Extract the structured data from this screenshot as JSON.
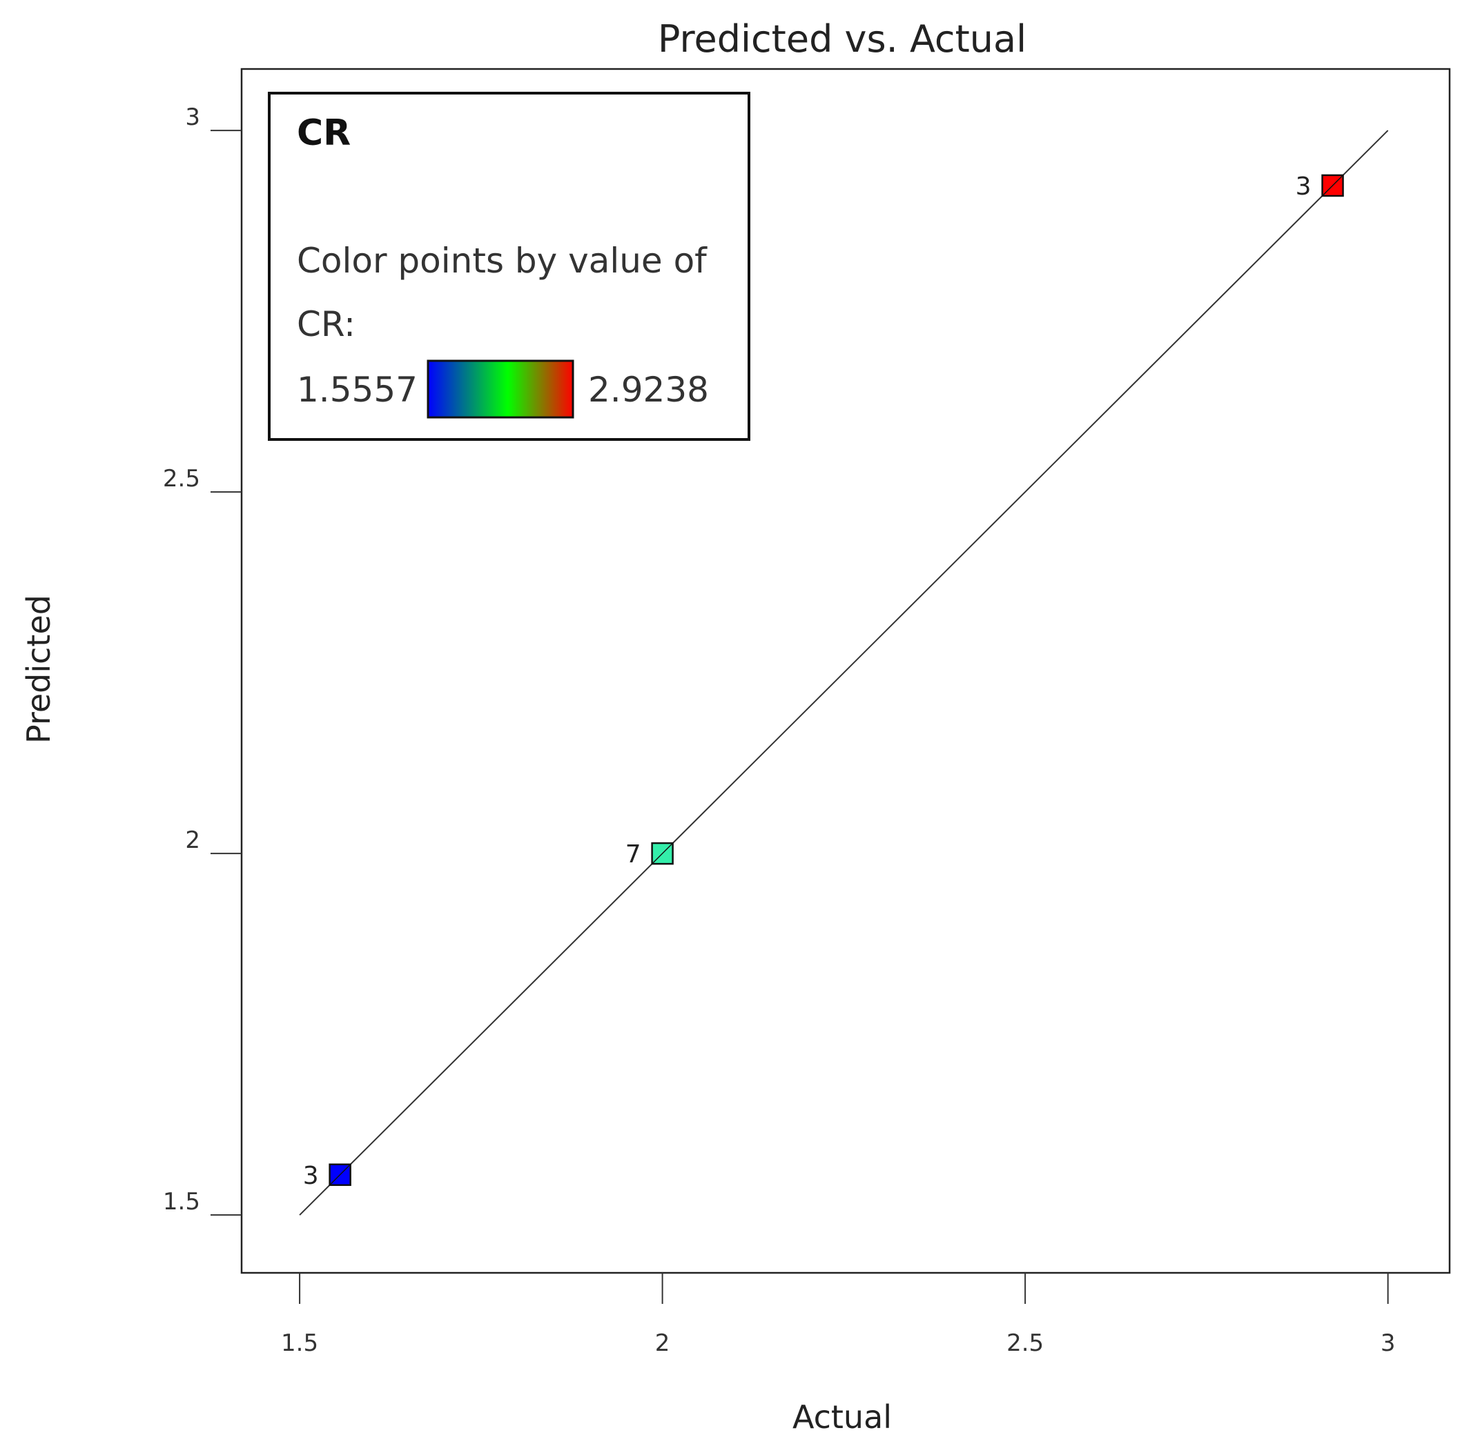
{
  "chart_data": {
    "type": "scatter",
    "title": "Predicted vs. Actual",
    "xlabel": "Actual",
    "ylabel": "Predicted",
    "xlim": [
      1.42,
      3.085
    ],
    "ylim": [
      1.42,
      3.085
    ],
    "xticks": [
      1.5,
      2,
      2.5,
      3
    ],
    "yticks": [
      1.5,
      2,
      2.5,
      3
    ],
    "xtick_labels": [
      "1.5",
      "2",
      "2.5",
      "3"
    ],
    "ytick_labels": [
      "1.5",
      "2",
      "2.5",
      "3"
    ],
    "reference_line": {
      "from": [
        1.5,
        1.5
      ],
      "to": [
        3,
        3
      ]
    },
    "points": [
      {
        "x": 1.5557,
        "y": 1.5557,
        "label": "3",
        "color": "#0000ff"
      },
      {
        "x": 2.0,
        "y": 2.0,
        "label": "7",
        "color": "#33eeaa"
      },
      {
        "x": 2.9238,
        "y": 2.9238,
        "label": "3",
        "color": "#ff0000"
      }
    ],
    "legend": {
      "placement": "top-left",
      "title": "CR",
      "text_line1": "Color points by value of",
      "text_line2": "CR:",
      "min_label": "1.5557",
      "max_label": "2.9238",
      "gradient_colors": [
        "#0000ff",
        "#00ff00",
        "#ff0000"
      ]
    },
    "grid": false
  }
}
